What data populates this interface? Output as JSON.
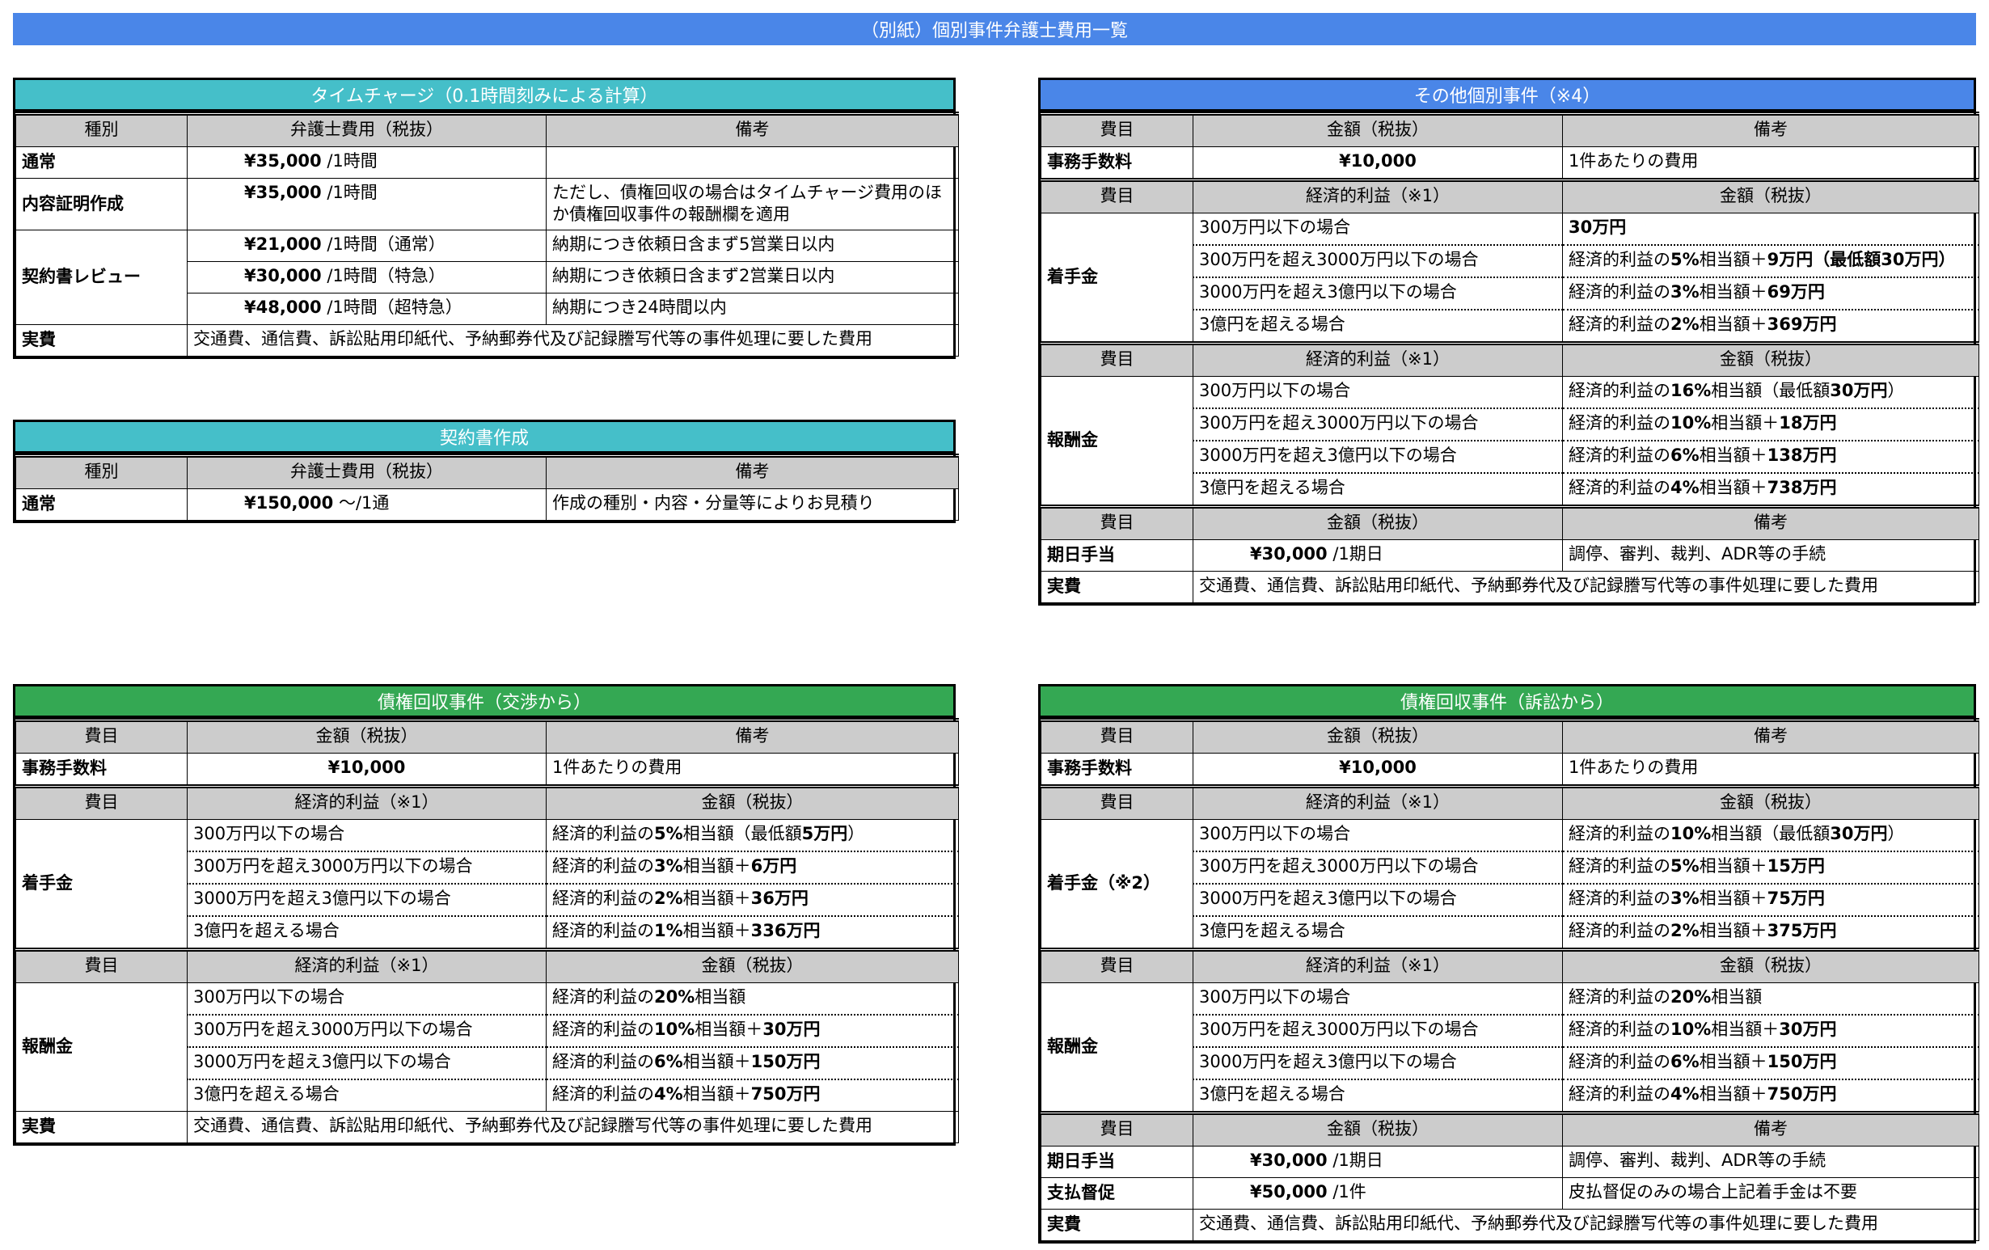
{
  "page_title": "（別紙）個別事件弁護士費用一覧",
  "colors": {
    "title_bar": "#4a86e8",
    "time_charge": "#45bfc9",
    "contract": "#45bfc9",
    "other": "#4a86e8",
    "debt_negotiation": "#34a853",
    "debt_litigation": "#34a853",
    "header_gray": "#cccccc"
  },
  "sections": [
    {
      "id": "time-charge",
      "title": "タイムチャージ（0.1時間刻みによる計算）",
      "blocks": [
        {
          "header": [
            "種別",
            "弁護士費用（税抜）",
            "備考"
          ],
          "groups": [
            {
              "label": "通常",
              "rows": [
                [
                  [
                    {
                      "b": "¥35,000"
                    },
                    " /1時間"
                  ],
                  ""
                ]
              ]
            },
            {
              "label": "内容証明作成",
              "rows": [
                [
                  [
                    {
                      "b": "¥35,000"
                    },
                    " /1時間"
                  ],
                  "ただし、債権回収の場合はタイムチャージ費用のほか債権回収事件の報酬欄を適用"
                ]
              ]
            },
            {
              "label": "契約書レビュー",
              "rows": [
                [
                  [
                    {
                      "b": "¥21,000"
                    },
                    " /1時間（通常）"
                  ],
                  "納期につき依頼日含まず5営業日以内"
                ],
                [
                  [
                    {
                      "b": "¥30,000"
                    },
                    " /1時間（特急）"
                  ],
                  "納期につき依頼日含まず2営業日以内"
                ],
                [
                  [
                    {
                      "b": "¥48,000"
                    },
                    " /1時間（超特急）"
                  ],
                  "納期につき24時間以内"
                ]
              ]
            },
            {
              "label": "実費",
              "rows": [
                [
                  "交通費、通信費、訴訟貼用印紙代、予納郵券代及び記録謄写代等の事件処理に要した費用"
                ]
              ]
            }
          ]
        }
      ]
    },
    {
      "id": "contract-drafting",
      "title": "契約書作成",
      "blocks": [
        {
          "header": [
            "種別",
            "弁護士費用（税抜）",
            "備考"
          ],
          "groups": [
            {
              "label": "通常",
              "rows": [
                [
                  [
                    {
                      "b": "¥150,000"
                    },
                    " ～/1通"
                  ],
                  "作成の種別・内容・分量等によりお見積り"
                ]
              ]
            }
          ]
        }
      ]
    },
    {
      "id": "other-cases",
      "title": "その他個別事件（※4）",
      "blocks": [
        {
          "header": [
            "費目",
            "金額（税抜）",
            "備考"
          ],
          "groups": [
            {
              "label": "事務手数料",
              "rows": [
                [
                  [
                    {
                      "b": "¥10,000"
                    }
                  ],
                  "1件あたりの費用"
                ]
              ]
            }
          ]
        },
        {
          "header": [
            "費目",
            "経済的利益（※1）",
            "金額（税抜）"
          ],
          "groups": [
            {
              "label": "着手金",
              "rows": [
                [
                  "300万円以下の場合",
                  [
                    {
                      "b": "30万円"
                    }
                  ]
                ],
                [
                  "300万円を超え3000万円以下の場合",
                  [
                    "経済的利益の",
                    {
                      "b": "5%"
                    },
                    "相当額＋",
                    {
                      "b": "9万円"
                    },
                    {
                      "b": "（最低額30万円）"
                    }
                  ]
                ],
                [
                  "3000万円を超え3億円以下の場合",
                  [
                    "経済的利益の",
                    {
                      "b": "3%"
                    },
                    "相当額＋",
                    {
                      "b": "69万円"
                    }
                  ]
                ],
                [
                  "3億円を超える場合",
                  [
                    "経済的利益の",
                    {
                      "b": "2%"
                    },
                    "相当額＋",
                    {
                      "b": "369万円"
                    }
                  ]
                ]
              ]
            }
          ]
        },
        {
          "header": [
            "費目",
            "経済的利益（※1）",
            "金額（税抜）"
          ],
          "groups": [
            {
              "label": "報酬金",
              "rows": [
                [
                  "300万円以下の場合",
                  [
                    "経済的利益の",
                    {
                      "b": "16%"
                    },
                    "相当額（最低額",
                    {
                      "b": "30万円"
                    },
                    "）"
                  ]
                ],
                [
                  "300万円を超え3000万円以下の場合",
                  [
                    "経済的利益の",
                    {
                      "b": "10%"
                    },
                    "相当額＋",
                    {
                      "b": "18万円"
                    }
                  ]
                ],
                [
                  "3000万円を超え3億円以下の場合",
                  [
                    "経済的利益の",
                    {
                      "b": "6%"
                    },
                    "相当額＋",
                    {
                      "b": "138万円"
                    }
                  ]
                ],
                [
                  "3億円を超える場合",
                  [
                    "経済的利益の",
                    {
                      "b": "4%"
                    },
                    "相当額＋",
                    {
                      "b": "738万円"
                    }
                  ]
                ]
              ]
            }
          ]
        },
        {
          "header": [
            "費目",
            "金額（税抜）",
            "備考"
          ],
          "groups": [
            {
              "label": "期日手当",
              "rows": [
                [
                  [
                    {
                      "b": "¥30,000"
                    },
                    " /1期日"
                  ],
                  "調停、審判、裁判、ADR等の手続"
                ]
              ]
            },
            {
              "label": "実費",
              "rows": [
                [
                  "交通費、通信費、訴訟貼用印紙代、予納郵券代及び記録謄写代等の事件処理に要した費用"
                ]
              ]
            }
          ]
        }
      ]
    },
    {
      "id": "debt-negotiation",
      "title": "債権回収事件（交渉から）",
      "blocks": [
        {
          "header": [
            "費目",
            "金額（税抜）",
            "備考"
          ],
          "groups": [
            {
              "label": "事務手数料",
              "rows": [
                [
                  [
                    {
                      "b": "¥10,000"
                    }
                  ],
                  "1件あたりの費用"
                ]
              ]
            }
          ]
        },
        {
          "header": [
            "費目",
            "経済的利益（※1）",
            "金額（税抜）"
          ],
          "groups": [
            {
              "label": "着手金",
              "rows": [
                [
                  "300万円以下の場合",
                  [
                    "経済的利益の",
                    {
                      "b": "5%"
                    },
                    "相当額（最低額",
                    {
                      "b": "5万円"
                    },
                    "）"
                  ]
                ],
                [
                  "300万円を超え3000万円以下の場合",
                  [
                    "経済的利益の",
                    {
                      "b": "3%"
                    },
                    "相当額＋",
                    {
                      "b": "6万円"
                    }
                  ]
                ],
                [
                  "3000万円を超え3億円以下の場合",
                  [
                    "経済的利益の",
                    {
                      "b": "2%"
                    },
                    "相当額＋",
                    {
                      "b": "36万円"
                    }
                  ]
                ],
                [
                  "3億円を超える場合",
                  [
                    "経済的利益の",
                    {
                      "b": "1%"
                    },
                    "相当額＋",
                    {
                      "b": "336万円"
                    }
                  ]
                ]
              ]
            }
          ]
        },
        {
          "header": [
            "費目",
            "経済的利益（※1）",
            "金額（税抜）"
          ],
          "groups": [
            {
              "label": "報酬金",
              "rows": [
                [
                  "300万円以下の場合",
                  [
                    "経済的利益の",
                    {
                      "b": "20%"
                    },
                    "相当額"
                  ]
                ],
                [
                  "300万円を超え3000万円以下の場合",
                  [
                    "経済的利益の",
                    {
                      "b": "10%"
                    },
                    "相当額＋",
                    {
                      "b": "30万円"
                    }
                  ]
                ],
                [
                  "3000万円を超え3億円以下の場合",
                  [
                    "経済的利益の",
                    {
                      "b": "6%"
                    },
                    "相当額＋",
                    {
                      "b": "150万円"
                    }
                  ]
                ],
                [
                  "3億円を超える場合",
                  [
                    "経済的利益の",
                    {
                      "b": "4%"
                    },
                    "相当額＋",
                    {
                      "b": "750万円"
                    }
                  ]
                ]
              ]
            },
            {
              "label": "実費",
              "rows": [
                [
                  "交通費、通信費、訴訟貼用印紙代、予納郵券代及び記録謄写代等の事件処理に要した費用"
                ]
              ]
            }
          ]
        }
      ]
    },
    {
      "id": "debt-litigation",
      "title": "債権回収事件（訴訟から）",
      "blocks": [
        {
          "header": [
            "費目",
            "金額（税抜）",
            "備考"
          ],
          "groups": [
            {
              "label": "事務手数料",
              "rows": [
                [
                  [
                    {
                      "b": "¥10,000"
                    }
                  ],
                  "1件あたりの費用"
                ]
              ]
            }
          ]
        },
        {
          "header": [
            "費目",
            "経済的利益（※1）",
            "金額（税抜）"
          ],
          "groups": [
            {
              "label": "着手金（※2）",
              "rows": [
                [
                  "300万円以下の場合",
                  [
                    "経済的利益の",
                    {
                      "b": "10%"
                    },
                    "相当額（最低額",
                    {
                      "b": "30万円"
                    },
                    "）"
                  ]
                ],
                [
                  "300万円を超え3000万円以下の場合",
                  [
                    "経済的利益の",
                    {
                      "b": "5%"
                    },
                    "相当額＋",
                    {
                      "b": "15万円"
                    }
                  ]
                ],
                [
                  "3000万円を超え3億円以下の場合",
                  [
                    "経済的利益の",
                    {
                      "b": "3%"
                    },
                    "相当額＋",
                    {
                      "b": "75万円"
                    }
                  ]
                ],
                [
                  "3億円を超える場合",
                  [
                    "経済的利益の",
                    {
                      "b": "2%"
                    },
                    "相当額＋",
                    {
                      "b": "375万円"
                    }
                  ]
                ]
              ]
            }
          ]
        },
        {
          "header": [
            "費目",
            "経済的利益（※1）",
            "金額（税抜）"
          ],
          "groups": [
            {
              "label": "報酬金",
              "rows": [
                [
                  "300万円以下の場合",
                  [
                    "経済的利益の",
                    {
                      "b": "20%"
                    },
                    "相当額"
                  ]
                ],
                [
                  "300万円を超え3000万円以下の場合",
                  [
                    "経済的利益の",
                    {
                      "b": "10%"
                    },
                    "相当額＋",
                    {
                      "b": "30万円"
                    }
                  ]
                ],
                [
                  "3000万円を超え3億円以下の場合",
                  [
                    "経済的利益の",
                    {
                      "b": "6%"
                    },
                    "相当額＋",
                    {
                      "b": "150万円"
                    }
                  ]
                ],
                [
                  "3億円を超える場合",
                  [
                    "経済的利益の",
                    {
                      "b": "4%"
                    },
                    "相当額＋",
                    {
                      "b": "750万円"
                    }
                  ]
                ]
              ]
            }
          ]
        },
        {
          "header": [
            "費目",
            "金額（税抜）",
            "備考"
          ],
          "groups": [
            {
              "label": "期日手当",
              "rows": [
                [
                  [
                    {
                      "b": "¥30,000"
                    },
                    " /1期日"
                  ],
                  "調停、審判、裁判、ADR等の手続"
                ]
              ]
            },
            {
              "label": "支払督促",
              "rows": [
                [
                  [
                    {
                      "b": "¥50,000"
                    },
                    " /1件"
                  ],
                  "皮払督促のみの場合上記着手金は不要"
                ]
              ]
            },
            {
              "label": "実費",
              "rows": [
                [
                  "交通費、通信費、訴訟貼用印紙代、予納郵券代及び記録謄写代等の事件処理に要した費用"
                ]
              ]
            }
          ]
        }
      ]
    }
  ]
}
